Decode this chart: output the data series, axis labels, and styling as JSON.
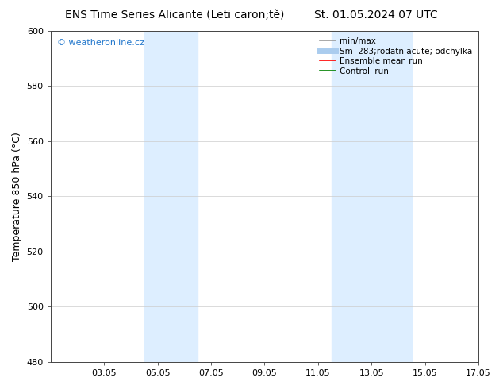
{
  "title_left": "ENS Time Series Alicante (Leti caron;tě)",
  "title_right": "St. 01.05.2024 07 UTC",
  "ylabel": "Temperature 850 hPa (°C)",
  "xtick_labels": [
    "03.05",
    "05.05",
    "07.05",
    "09.05",
    "11.05",
    "13.05",
    "15.05",
    "17.05"
  ],
  "xtick_positions": [
    2,
    4,
    6,
    8,
    10,
    12,
    14,
    16
  ],
  "ylim": [
    480,
    600
  ],
  "ytick_positions": [
    480,
    500,
    520,
    540,
    560,
    580,
    600
  ],
  "ytick_labels": [
    "480",
    "500",
    "520",
    "540",
    "560",
    "580",
    "600"
  ],
  "shaded_bands": [
    {
      "x_start": 3.5,
      "x_end": 5.5,
      "color": "#ddeeff"
    },
    {
      "x_start": 10.5,
      "x_end": 13.5,
      "color": "#ddeeff"
    }
  ],
  "watermark_text": "© weatheronline.cz",
  "watermark_color": "#2277cc",
  "legend_entries": [
    {
      "label": "min/max",
      "color": "#999999",
      "lw": 1.2
    },
    {
      "label": "Sm  283;rodatn acute; odchylka",
      "color": "#aaccee",
      "lw": 5
    },
    {
      "label": "Ensemble mean run",
      "color": "red",
      "lw": 1.2
    },
    {
      "label": "Controll run",
      "color": "green",
      "lw": 1.2
    }
  ],
  "bg_color": "#ffffff",
  "title_fontsize": 10,
  "ylabel_fontsize": 9,
  "tick_fontsize": 8,
  "legend_fontsize": 7.5,
  "watermark_fontsize": 8,
  "x_min": 0,
  "x_max": 16
}
